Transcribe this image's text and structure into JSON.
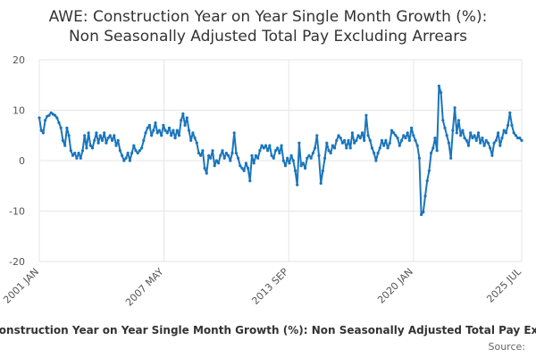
{
  "chart_data": {
    "type": "line",
    "title_lines": [
      "AWE: Construction Year on Year Single Month Growth (%):",
      "Non Seasonally Adjusted Total Pay Excluding Arrears"
    ],
    "ylim": [
      -20,
      20
    ],
    "yticks": [
      20,
      10,
      0,
      -10,
      -20
    ],
    "xlim": [
      2001.0,
      2025.5
    ],
    "xticks": [
      {
        "label": "2001 JAN",
        "x": 2001.0
      },
      {
        "label": "2007 MAY",
        "x": 2007.33
      },
      {
        "label": "2013 SEP",
        "x": 2013.67
      },
      {
        "label": "2020 JAN",
        "x": 2020.0
      },
      {
        "label": "2025 JUL",
        "x": 2025.5
      }
    ],
    "grid": true,
    "series": [
      {
        "name": "Construction Year on Year Single Month Growth (%): Non Seasonally Adjusted Total Pay Excluding Arrears",
        "color": "#1a75bc",
        "points": [
          [
            2001.0,
            8.5
          ],
          [
            2001.1,
            6.0
          ],
          [
            2001.2,
            5.5
          ],
          [
            2001.3,
            8.0
          ],
          [
            2001.4,
            8.8
          ],
          [
            2001.5,
            9.0
          ],
          [
            2001.6,
            9.5
          ],
          [
            2001.7,
            9.2
          ],
          [
            2001.8,
            9.0
          ],
          [
            2001.9,
            8.5
          ],
          [
            2002.0,
            7.5
          ],
          [
            2002.1,
            6.5
          ],
          [
            2002.2,
            4.0
          ],
          [
            2002.3,
            3.0
          ],
          [
            2002.4,
            6.5
          ],
          [
            2002.5,
            5.0
          ],
          [
            2002.6,
            2.0
          ],
          [
            2002.7,
            1.0
          ],
          [
            2002.8,
            1.5
          ],
          [
            2002.9,
            0.5
          ],
          [
            2003.0,
            1.5
          ],
          [
            2003.1,
            0.5
          ],
          [
            2003.2,
            2.0
          ],
          [
            2003.3,
            5.0
          ],
          [
            2003.4,
            2.5
          ],
          [
            2003.5,
            5.5
          ],
          [
            2003.6,
            3.0
          ],
          [
            2003.7,
            2.5
          ],
          [
            2003.8,
            4.0
          ],
          [
            2003.9,
            5.5
          ],
          [
            2004.0,
            3.5
          ],
          [
            2004.1,
            5.0
          ],
          [
            2004.2,
            4.0
          ],
          [
            2004.3,
            5.5
          ],
          [
            2004.4,
            3.5
          ],
          [
            2004.5,
            4.5
          ],
          [
            2004.6,
            5.0
          ],
          [
            2004.7,
            4.0
          ],
          [
            2004.8,
            5.0
          ],
          [
            2004.9,
            3.0
          ],
          [
            2005.0,
            4.0
          ],
          [
            2005.1,
            2.0
          ],
          [
            2005.2,
            1.0
          ],
          [
            2005.3,
            0.0
          ],
          [
            2005.4,
            0.5
          ],
          [
            2005.5,
            1.5
          ],
          [
            2005.6,
            0.0
          ],
          [
            2005.7,
            1.5
          ],
          [
            2005.8,
            3.0
          ],
          [
            2005.9,
            2.0
          ],
          [
            2006.0,
            1.5
          ],
          [
            2006.1,
            2.0
          ],
          [
            2006.2,
            2.5
          ],
          [
            2006.3,
            4.0
          ],
          [
            2006.4,
            5.5
          ],
          [
            2006.5,
            6.5
          ],
          [
            2006.6,
            7.0
          ],
          [
            2006.7,
            5.0
          ],
          [
            2006.8,
            6.0
          ],
          [
            2006.9,
            7.5
          ],
          [
            2007.0,
            5.5
          ],
          [
            2007.1,
            6.0
          ],
          [
            2007.2,
            5.0
          ],
          [
            2007.3,
            7.0
          ],
          [
            2007.4,
            6.0
          ],
          [
            2007.5,
            5.5
          ],
          [
            2007.6,
            6.5
          ],
          [
            2007.7,
            5.0
          ],
          [
            2007.8,
            6.0
          ],
          [
            2007.9,
            4.5
          ],
          [
            2008.0,
            6.0
          ],
          [
            2008.1,
            5.0
          ],
          [
            2008.2,
            8.0
          ],
          [
            2008.3,
            9.3
          ],
          [
            2008.4,
            7.0
          ],
          [
            2008.5,
            8.5
          ],
          [
            2008.6,
            6.0
          ],
          [
            2008.7,
            4.0
          ],
          [
            2008.8,
            5.5
          ],
          [
            2008.9,
            4.5
          ],
          [
            2009.0,
            3.5
          ],
          [
            2009.1,
            1.5
          ],
          [
            2009.2,
            1.0
          ],
          [
            2009.3,
            2.0
          ],
          [
            2009.4,
            -1.5
          ],
          [
            2009.5,
            -2.5
          ],
          [
            2009.6,
            1.0
          ],
          [
            2009.7,
            0.5
          ],
          [
            2009.8,
            2.0
          ],
          [
            2009.9,
            -1.0
          ],
          [
            2010.0,
            0.0
          ],
          [
            2010.1,
            -0.5
          ],
          [
            2010.2,
            1.0
          ],
          [
            2010.3,
            2.0
          ],
          [
            2010.4,
            0.5
          ],
          [
            2010.5,
            1.5
          ],
          [
            2010.6,
            1.0
          ],
          [
            2010.7,
            0.0
          ],
          [
            2010.8,
            1.5
          ],
          [
            2010.9,
            5.5
          ],
          [
            2011.0,
            1.5
          ],
          [
            2011.1,
            0.5
          ],
          [
            2011.2,
            -1.0
          ],
          [
            2011.3,
            -1.5
          ],
          [
            2011.4,
            -2.0
          ],
          [
            2011.5,
            -0.5
          ],
          [
            2011.6,
            -1.5
          ],
          [
            2011.7,
            -4.0
          ],
          [
            2011.8,
            1.0
          ],
          [
            2011.9,
            -0.5
          ],
          [
            2012.0,
            1.0
          ],
          [
            2012.1,
            0.5
          ],
          [
            2012.2,
            2.0
          ],
          [
            2012.3,
            3.0
          ],
          [
            2012.4,
            2.5
          ],
          [
            2012.5,
            3.0
          ],
          [
            2012.6,
            2.0
          ],
          [
            2012.7,
            3.0
          ],
          [
            2012.8,
            1.0
          ],
          [
            2012.9,
            0.5
          ],
          [
            2013.0,
            2.0
          ],
          [
            2013.1,
            2.5
          ],
          [
            2013.2,
            1.5
          ],
          [
            2013.3,
            3.0
          ],
          [
            2013.4,
            0.0
          ],
          [
            2013.5,
            -1.0
          ],
          [
            2013.6,
            0.5
          ],
          [
            2013.7,
            -0.5
          ],
          [
            2013.8,
            1.0
          ],
          [
            2013.9,
            0.0
          ],
          [
            2014.0,
            -2.0
          ],
          [
            2014.1,
            -4.8
          ],
          [
            2014.2,
            3.5
          ],
          [
            2014.3,
            -1.0
          ],
          [
            2014.4,
            -0.5
          ],
          [
            2014.5,
            -1.5
          ],
          [
            2014.6,
            0.5
          ],
          [
            2014.7,
            1.0
          ],
          [
            2014.8,
            0.5
          ],
          [
            2014.9,
            1.5
          ],
          [
            2015.0,
            2.5
          ],
          [
            2015.1,
            5.0
          ],
          [
            2015.2,
            1.0
          ],
          [
            2015.3,
            -4.5
          ],
          [
            2015.4,
            -2.0
          ],
          [
            2015.5,
            0.5
          ],
          [
            2015.6,
            3.5
          ],
          [
            2015.7,
            2.0
          ],
          [
            2015.8,
            1.5
          ],
          [
            2015.9,
            3.0
          ],
          [
            2016.0,
            2.5
          ],
          [
            2016.1,
            4.0
          ],
          [
            2016.2,
            5.0
          ],
          [
            2016.3,
            4.5
          ],
          [
            2016.4,
            3.5
          ],
          [
            2016.5,
            4.0
          ],
          [
            2016.6,
            2.5
          ],
          [
            2016.7,
            4.0
          ],
          [
            2016.8,
            2.5
          ],
          [
            2016.9,
            5.5
          ],
          [
            2017.0,
            3.5
          ],
          [
            2017.1,
            4.0
          ],
          [
            2017.2,
            5.0
          ],
          [
            2017.3,
            4.5
          ],
          [
            2017.4,
            5.5
          ],
          [
            2017.5,
            4.0
          ],
          [
            2017.6,
            9.0
          ],
          [
            2017.7,
            5.0
          ],
          [
            2017.8,
            4.0
          ],
          [
            2017.9,
            2.5
          ],
          [
            2018.0,
            1.5
          ],
          [
            2018.1,
            0.0
          ],
          [
            2018.2,
            1.5
          ],
          [
            2018.3,
            2.5
          ],
          [
            2018.4,
            4.0
          ],
          [
            2018.5,
            3.0
          ],
          [
            2018.6,
            4.0
          ],
          [
            2018.7,
            2.5
          ],
          [
            2018.8,
            3.5
          ],
          [
            2018.9,
            6.0
          ],
          [
            2019.0,
            5.5
          ],
          [
            2019.1,
            5.0
          ],
          [
            2019.2,
            4.5
          ],
          [
            2019.3,
            3.0
          ],
          [
            2019.4,
            4.0
          ],
          [
            2019.5,
            5.0
          ],
          [
            2019.6,
            4.5
          ],
          [
            2019.7,
            5.5
          ],
          [
            2019.8,
            4.0
          ],
          [
            2019.9,
            6.5
          ],
          [
            2020.0,
            5.0
          ],
          [
            2020.1,
            4.0
          ],
          [
            2020.2,
            3.0
          ],
          [
            2020.3,
            0.5
          ],
          [
            2020.4,
            -10.7
          ],
          [
            2020.5,
            -10.2
          ],
          [
            2020.6,
            -7.0
          ],
          [
            2020.7,
            -4.0
          ],
          [
            2020.8,
            -2.0
          ],
          [
            2020.9,
            1.5
          ],
          [
            2021.0,
            2.5
          ],
          [
            2021.1,
            4.5
          ],
          [
            2021.2,
            2.0
          ],
          [
            2021.3,
            14.8
          ],
          [
            2021.4,
            13.5
          ],
          [
            2021.5,
            8.0
          ],
          [
            2021.6,
            6.5
          ],
          [
            2021.7,
            5.0
          ],
          [
            2021.8,
            3.5
          ],
          [
            2021.9,
            0.5
          ],
          [
            2022.0,
            6.0
          ],
          [
            2022.1,
            10.5
          ],
          [
            2022.2,
            5.5
          ],
          [
            2022.3,
            8.0
          ],
          [
            2022.4,
            5.0
          ],
          [
            2022.5,
            6.0
          ],
          [
            2022.6,
            4.5
          ],
          [
            2022.7,
            4.0
          ],
          [
            2022.8,
            3.0
          ],
          [
            2022.9,
            5.5
          ],
          [
            2023.0,
            4.5
          ],
          [
            2023.1,
            5.0
          ],
          [
            2023.2,
            4.0
          ],
          [
            2023.3,
            5.5
          ],
          [
            2023.4,
            3.5
          ],
          [
            2023.5,
            4.5
          ],
          [
            2023.6,
            3.0
          ],
          [
            2023.7,
            4.0
          ],
          [
            2023.8,
            3.5
          ],
          [
            2023.9,
            2.5
          ],
          [
            2024.0,
            1.0
          ],
          [
            2024.1,
            3.5
          ],
          [
            2024.2,
            4.0
          ],
          [
            2024.3,
            5.5
          ],
          [
            2024.4,
            3.0
          ],
          [
            2024.5,
            4.5
          ],
          [
            2024.6,
            6.0
          ],
          [
            2024.7,
            5.5
          ],
          [
            2024.8,
            7.0
          ],
          [
            2024.9,
            9.5
          ],
          [
            2025.0,
            7.0
          ],
          [
            2025.1,
            5.5
          ],
          [
            2025.2,
            5.0
          ],
          [
            2025.3,
            4.5
          ],
          [
            2025.4,
            4.5
          ],
          [
            2025.5,
            4.0
          ]
        ]
      }
    ],
    "legend_text": "Construction Year on Year Single Month Growth (%): Non Seasonally Adjusted Total Pay Excluding Arrears",
    "source_label": "Source:"
  },
  "colors": {
    "line": "#1a75bc",
    "grid": "#e6e6e6",
    "axis": "#cccccc"
  }
}
